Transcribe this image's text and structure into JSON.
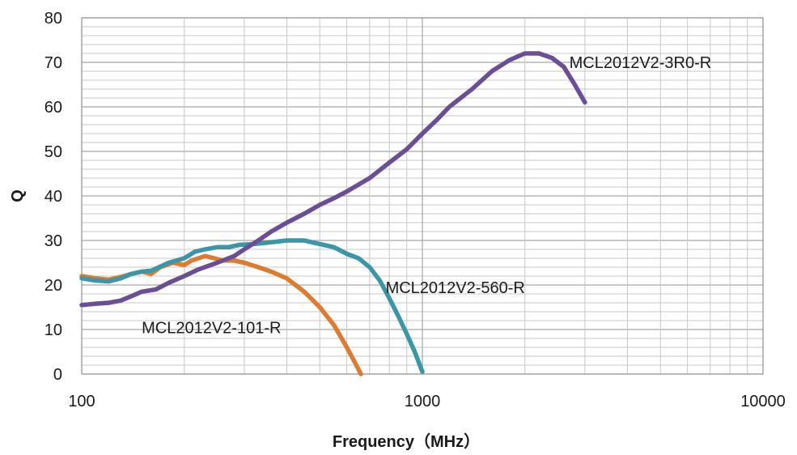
{
  "chart_data": {
    "type": "line",
    "title": "",
    "xlabel": "Frequency（MHz）",
    "ylabel": "Q",
    "x_scale": "log",
    "xlim": [
      100,
      10000
    ],
    "ylim": [
      0,
      80
    ],
    "x_ticks": [
      100,
      1000,
      10000
    ],
    "x_tick_labels": [
      "100",
      "1000",
      "10000"
    ],
    "y_ticks": [
      0,
      10,
      20,
      30,
      40,
      50,
      60,
      70,
      80
    ],
    "y_tick_labels": [
      "0",
      "10",
      "20",
      "30",
      "40",
      "50",
      "60",
      "70",
      "80"
    ],
    "grid": true,
    "legend": "none (series labeled inline)",
    "series": [
      {
        "name": "MCL2012V2-101-R",
        "color": "#e07b2e",
        "points": [
          [
            100,
            22
          ],
          [
            110,
            21.5
          ],
          [
            120,
            21.2
          ],
          [
            130,
            21.8
          ],
          [
            140,
            22.5
          ],
          [
            150,
            23
          ],
          [
            160,
            22.5
          ],
          [
            170,
            24
          ],
          [
            185,
            25
          ],
          [
            200,
            24.5
          ],
          [
            210,
            25.5
          ],
          [
            230,
            26.5
          ],
          [
            245,
            26
          ],
          [
            260,
            25.5
          ],
          [
            280,
            25.5
          ],
          [
            300,
            25
          ],
          [
            330,
            24
          ],
          [
            360,
            23
          ],
          [
            400,
            21.5
          ],
          [
            450,
            18.5
          ],
          [
            500,
            15
          ],
          [
            550,
            11
          ],
          [
            600,
            6
          ],
          [
            640,
            2
          ],
          [
            660,
            0
          ]
        ],
        "label_at": [
          150,
          10.5
        ]
      },
      {
        "name": "MCL2012V2-560-R",
        "color": "#3a97a8",
        "points": [
          [
            100,
            21.5
          ],
          [
            110,
            21
          ],
          [
            120,
            20.8
          ],
          [
            130,
            21.5
          ],
          [
            140,
            22.5
          ],
          [
            150,
            23
          ],
          [
            160,
            23.2
          ],
          [
            180,
            25
          ],
          [
            200,
            26
          ],
          [
            215,
            27.5
          ],
          [
            230,
            28
          ],
          [
            250,
            28.5
          ],
          [
            270,
            28.5
          ],
          [
            290,
            29
          ],
          [
            320,
            29.2
          ],
          [
            350,
            29.5
          ],
          [
            400,
            30
          ],
          [
            450,
            30
          ],
          [
            500,
            29.2
          ],
          [
            550,
            28.5
          ],
          [
            600,
            27
          ],
          [
            650,
            26
          ],
          [
            700,
            24
          ],
          [
            750,
            21
          ],
          [
            800,
            17
          ],
          [
            850,
            13
          ],
          [
            900,
            9
          ],
          [
            950,
            5
          ],
          [
            1000,
            0.5
          ]
        ],
        "label_at": [
          780,
          19.5
        ]
      },
      {
        "name": "MCL2012V2-3R0-R",
        "color": "#6b4f96",
        "points": [
          [
            100,
            15.5
          ],
          [
            110,
            15.8
          ],
          [
            120,
            16
          ],
          [
            130,
            16.5
          ],
          [
            140,
            17.5
          ],
          [
            150,
            18.5
          ],
          [
            165,
            19
          ],
          [
            180,
            20.5
          ],
          [
            200,
            22
          ],
          [
            220,
            23.5
          ],
          [
            250,
            25
          ],
          [
            280,
            26.5
          ],
          [
            300,
            28
          ],
          [
            330,
            30
          ],
          [
            360,
            32
          ],
          [
            400,
            34
          ],
          [
            450,
            36
          ],
          [
            500,
            38
          ],
          [
            550,
            39.5
          ],
          [
            600,
            41
          ],
          [
            700,
            44
          ],
          [
            800,
            47.5
          ],
          [
            900,
            50.5
          ],
          [
            1000,
            54
          ],
          [
            1100,
            57
          ],
          [
            1200,
            60
          ],
          [
            1400,
            64
          ],
          [
            1600,
            68
          ],
          [
            1800,
            70.5
          ],
          [
            2000,
            72
          ],
          [
            2200,
            72
          ],
          [
            2400,
            71
          ],
          [
            2600,
            69
          ],
          [
            2800,
            65
          ],
          [
            3000,
            61
          ]
        ],
        "label_at": [
          2700,
          70
        ]
      }
    ]
  }
}
